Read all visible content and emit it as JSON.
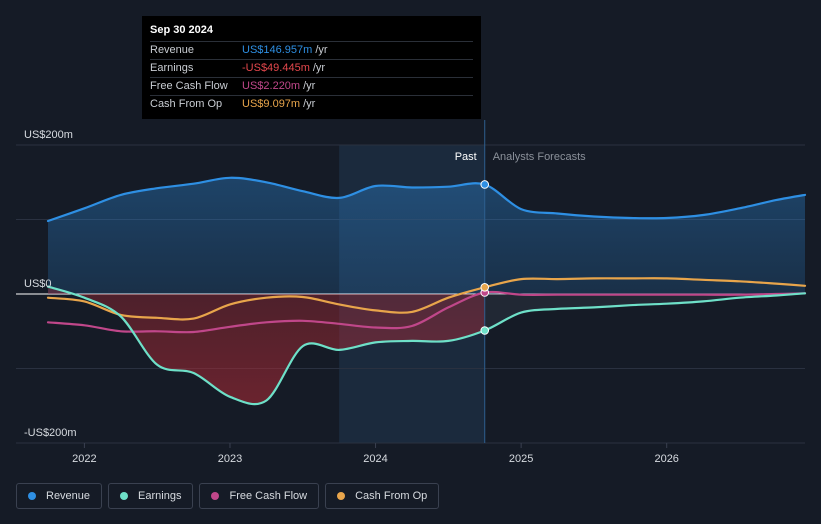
{
  "tooltip": {
    "date": "Sep 30 2024",
    "rows": [
      {
        "label": "Revenue",
        "value": "US$146.957m",
        "unit": "/yr",
        "color": "#2e8fe3"
      },
      {
        "label": "Earnings",
        "value": "-US$49.445m",
        "unit": "/yr",
        "color": "#e5484d"
      },
      {
        "label": "Free Cash Flow",
        "value": "US$2.220m",
        "unit": "/yr",
        "color": "#c0478a"
      },
      {
        "label": "Cash From Op",
        "value": "US$9.097m",
        "unit": "/yr",
        "color": "#e8a54b"
      }
    ]
  },
  "regions": {
    "past": "Past",
    "forecast": "Analysts Forecasts"
  },
  "legend": [
    {
      "label": "Revenue",
      "color": "#2e8fe3"
    },
    {
      "label": "Earnings",
      "color": "#6ee0c8"
    },
    {
      "label": "Free Cash Flow",
      "color": "#c0478a"
    },
    {
      "label": "Cash From Op",
      "color": "#e8a54b"
    }
  ],
  "chart_data": {
    "type": "line",
    "x_range": [
      2021.75,
      2026.95
    ],
    "ylim": [
      -200,
      200
    ],
    "y_tick_labels": [
      {
        "value": 200,
        "label": "US$200m"
      },
      {
        "value": 0,
        "label": "US$0"
      },
      {
        "value": -200,
        "label": "-US$200m"
      }
    ],
    "x_ticks": [
      {
        "value": 2022,
        "label": "2022"
      },
      {
        "value": 2023,
        "label": "2023"
      },
      {
        "value": 2024,
        "label": "2024"
      },
      {
        "value": 2025,
        "label": "2025"
      },
      {
        "value": 2026,
        "label": "2026"
      }
    ],
    "highlight_start": 2023.75,
    "past_end": 2024.75,
    "series": [
      {
        "name": "Revenue",
        "color": "#2e8fe3",
        "points": [
          [
            2021.75,
            98
          ],
          [
            2022.0,
            115
          ],
          [
            2022.25,
            133
          ],
          [
            2022.5,
            142
          ],
          [
            2022.75,
            148
          ],
          [
            2023.0,
            156
          ],
          [
            2023.25,
            150
          ],
          [
            2023.5,
            138
          ],
          [
            2023.75,
            129
          ],
          [
            2024.0,
            145
          ],
          [
            2024.25,
            143
          ],
          [
            2024.5,
            144
          ],
          [
            2024.75,
            147
          ],
          [
            2025.0,
            114
          ],
          [
            2025.25,
            108
          ],
          [
            2025.5,
            104
          ],
          [
            2025.75,
            102
          ],
          [
            2026.0,
            102
          ],
          [
            2026.25,
            106
          ],
          [
            2026.5,
            115
          ],
          [
            2026.75,
            126
          ],
          [
            2026.95,
            133
          ]
        ]
      },
      {
        "name": "Earnings",
        "color": "#6ee0c8",
        "points": [
          [
            2021.75,
            10
          ],
          [
            2022.0,
            -5
          ],
          [
            2022.25,
            -30
          ],
          [
            2022.5,
            -95
          ],
          [
            2022.75,
            -106
          ],
          [
            2023.0,
            -138
          ],
          [
            2023.25,
            -143
          ],
          [
            2023.5,
            -70
          ],
          [
            2023.75,
            -75
          ],
          [
            2024.0,
            -65
          ],
          [
            2024.25,
            -63
          ],
          [
            2024.5,
            -63
          ],
          [
            2024.75,
            -49
          ],
          [
            2025.0,
            -25
          ],
          [
            2025.25,
            -20
          ],
          [
            2025.5,
            -18
          ],
          [
            2025.75,
            -15
          ],
          [
            2026.0,
            -13
          ],
          [
            2026.25,
            -10
          ],
          [
            2026.5,
            -5
          ],
          [
            2026.75,
            -2
          ],
          [
            2026.95,
            1
          ]
        ]
      },
      {
        "name": "Free Cash Flow",
        "color": "#c0478a",
        "points": [
          [
            2021.75,
            -38
          ],
          [
            2022.0,
            -42
          ],
          [
            2022.25,
            -50
          ],
          [
            2022.5,
            -50
          ],
          [
            2022.75,
            -51
          ],
          [
            2023.0,
            -44
          ],
          [
            2023.25,
            -38
          ],
          [
            2023.5,
            -36
          ],
          [
            2023.75,
            -40
          ],
          [
            2024.0,
            -45
          ],
          [
            2024.25,
            -43
          ],
          [
            2024.5,
            -18
          ],
          [
            2024.75,
            2
          ],
          [
            2025.0,
            -1
          ],
          [
            2025.25,
            -1
          ],
          [
            2025.5,
            -1
          ],
          [
            2025.75,
            -1
          ],
          [
            2026.0,
            -1
          ],
          [
            2026.25,
            -1
          ],
          [
            2026.5,
            -1
          ],
          [
            2026.75,
            0
          ],
          [
            2026.95,
            1
          ]
        ]
      },
      {
        "name": "Cash From Op",
        "color": "#e8a54b",
        "points": [
          [
            2021.75,
            -5
          ],
          [
            2022.0,
            -10
          ],
          [
            2022.25,
            -28
          ],
          [
            2022.5,
            -32
          ],
          [
            2022.75,
            -33
          ],
          [
            2023.0,
            -14
          ],
          [
            2023.25,
            -5
          ],
          [
            2023.5,
            -4
          ],
          [
            2023.75,
            -14
          ],
          [
            2024.0,
            -22
          ],
          [
            2024.25,
            -24
          ],
          [
            2024.5,
            -5
          ],
          [
            2024.75,
            9
          ],
          [
            2025.0,
            20
          ],
          [
            2025.25,
            20
          ],
          [
            2025.5,
            21
          ],
          [
            2025.75,
            21
          ],
          [
            2026.0,
            21
          ],
          [
            2026.25,
            19
          ],
          [
            2026.5,
            17
          ],
          [
            2026.75,
            14
          ],
          [
            2026.95,
            11
          ]
        ]
      }
    ]
  }
}
